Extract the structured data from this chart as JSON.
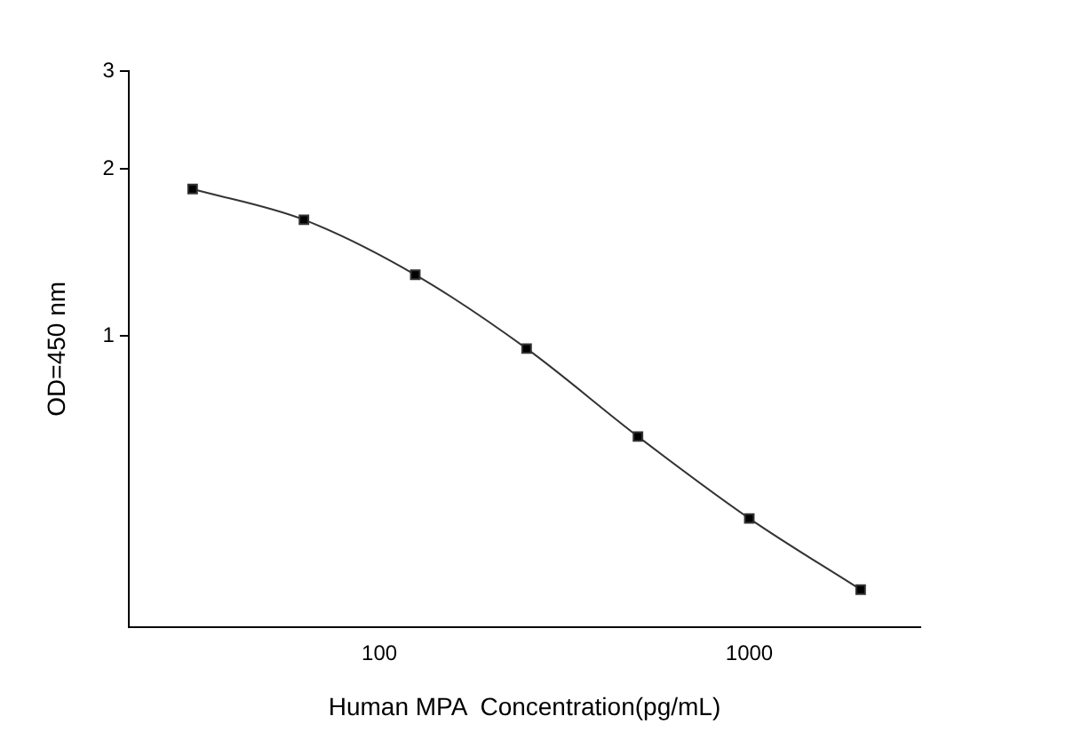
{
  "chart_data": {
    "type": "line",
    "xlabel": "Human MPA  Concentration(pg/mL)",
    "ylabel": "OD=450 nm",
    "x": [
      31.25,
      62.5,
      125,
      250,
      500,
      1000,
      2000
    ],
    "series": [
      {
        "color": "#333333",
        "values": [
          1.84,
          1.62,
          1.29,
          0.95,
          0.66,
          0.47,
          0.35
        ]
      }
    ],
    "xlim": [
      21,
      2900
    ],
    "xticks": [
      100,
      1000
    ],
    "ylim": [
      0.3,
      3
    ],
    "yticks": [
      1,
      2,
      3
    ],
    "log": "xy",
    "marker": "square",
    "line_style": "solid",
    "grid": false,
    "legend": false
  }
}
